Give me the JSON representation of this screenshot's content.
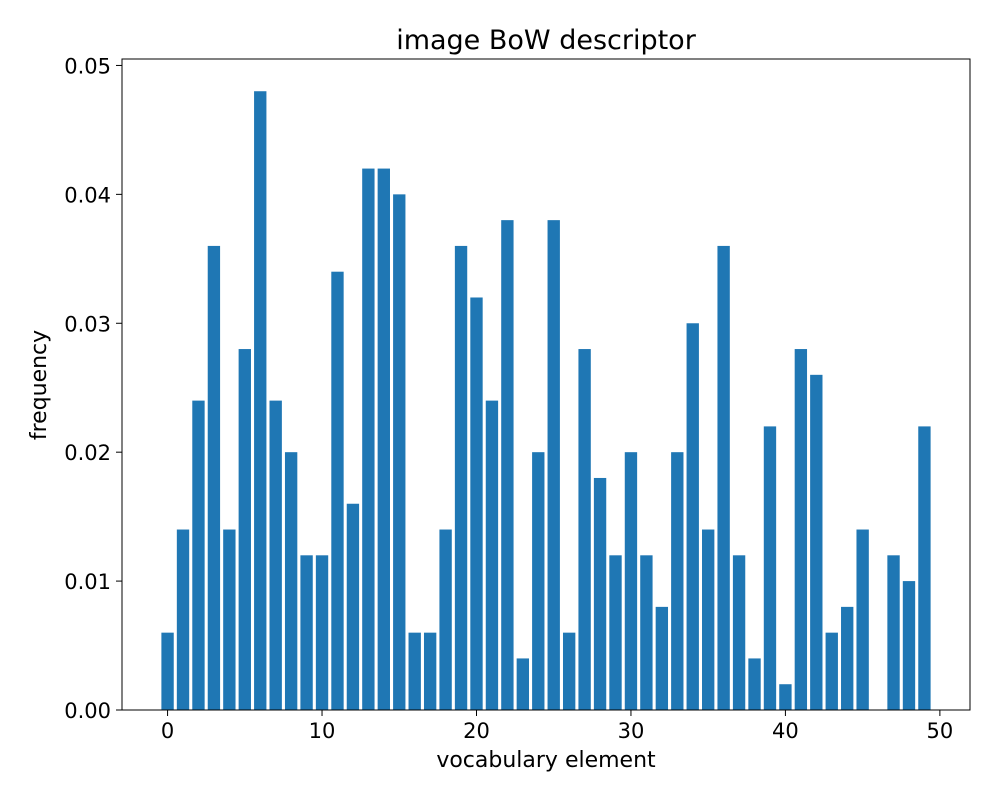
{
  "chart_data": {
    "type": "bar",
    "title": "image BoW descriptor",
    "xlabel": "vocabulary element",
    "ylabel": "frequency",
    "x": [
      0,
      1,
      2,
      3,
      4,
      5,
      6,
      7,
      8,
      9,
      10,
      11,
      12,
      13,
      14,
      15,
      16,
      17,
      18,
      19,
      20,
      21,
      22,
      23,
      24,
      25,
      26,
      27,
      28,
      29,
      30,
      31,
      32,
      33,
      34,
      35,
      36,
      37,
      38,
      39,
      40,
      41,
      42,
      43,
      44,
      45,
      46,
      47,
      48,
      49
    ],
    "values": [
      0.006,
      0.014,
      0.024,
      0.036,
      0.014,
      0.028,
      0.048,
      0.024,
      0.02,
      0.012,
      0.012,
      0.034,
      0.016,
      0.042,
      0.042,
      0.04,
      0.006,
      0.006,
      0.014,
      0.036,
      0.032,
      0.024,
      0.038,
      0.004,
      0.02,
      0.038,
      0.006,
      0.028,
      0.018,
      0.012,
      0.02,
      0.012,
      0.008,
      0.02,
      0.03,
      0.014,
      0.036,
      0.012,
      0.004,
      0.022,
      0.002,
      0.028,
      0.026,
      0.006,
      0.008,
      0.014,
      0.0,
      0.012,
      0.01,
      0.022
    ],
    "xlim": [
      -2.95,
      51.95
    ],
    "ylim": [
      0,
      0.0505
    ],
    "xticks": [
      0,
      10,
      20,
      30,
      40,
      50
    ],
    "xtick_labels": [
      "0",
      "10",
      "20",
      "30",
      "40",
      "50"
    ],
    "yticks": [
      0,
      0.01,
      0.02,
      0.03,
      0.04,
      0.05
    ],
    "ytick_labels": [
      "0.00",
      "0.01",
      "0.02",
      "0.03",
      "0.04",
      "0.05"
    ],
    "bar_color": "#1f77b4",
    "grid": false,
    "legend": "none"
  }
}
